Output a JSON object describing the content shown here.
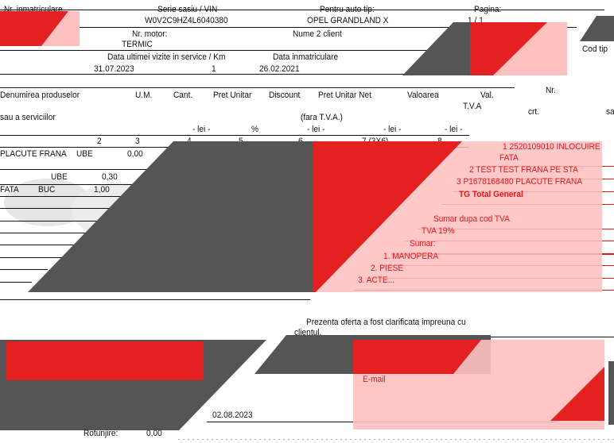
{
  "header": {
    "plate_label": "Nr. inmatriculare",
    "vin_label": "Serie sasiu / VIN",
    "vin_value": "W0V2C9HZ4L6040380",
    "model_label": "Pentru auto tip:",
    "model_value": "OPEL GRANDLAND X",
    "page_label": "Pagina:",
    "page_value": "1 / 1",
    "engine_label": "Nr. motor:",
    "engine_value": "TERMIC",
    "client2_label": "Nume 2 client",
    "code_label": "Cod tip",
    "last_visit_label": "Data ultimei vizite in service / Km",
    "last_visit_value": "31.07.2023",
    "km_value": "1",
    "reg_date_label": "Data inmatriculare",
    "reg_date_value": "26.02.2021"
  },
  "table": {
    "columns": {
      "name1": "Denumirea produselor",
      "name2": "sau a serviciilor",
      "um": "U.M.",
      "qty": "Cant.",
      "unit_price": "Pret Unitar",
      "discount": "Discount",
      "net_price": "Pret Unitar Net",
      "net_note": "(fara T.V.A.)",
      "value": "Valoarea",
      "vat1": "Val.",
      "vat2": "T.V.A",
      "nr1": "Nr.",
      "nr2": "crt.",
      "sa": "sa"
    },
    "units": [
      "- lei -",
      "%",
      "- lei -",
      "- lei -",
      "- lei -"
    ],
    "col_numbers": [
      "2",
      "3",
      "4",
      "5",
      "6",
      "7 (3X6)",
      "8"
    ],
    "rows": [
      {
        "name": "PLACUTE FRANA",
        "um": "UBE",
        "qty": "0,00"
      },
      {
        "name": "",
        "um": "UBE",
        "qty": "0,30"
      },
      {
        "name": "FATA",
        "um": "BUC",
        "qty": "1,00"
      }
    ]
  },
  "summary": {
    "items": [
      "1 2520109010 INLOCUIRE",
      "FATA",
      "2 TEST TEST FRANA PE STA",
      "3 P1678168480 PLACUTE FRANA"
    ],
    "total_general": "TG Total General",
    "by_vat": "Sumar dupa cod TVA",
    "vat": "TVA 19%",
    "sumar": "Sumar:",
    "sum_items": [
      "1. MANOPERA",
      "2. PIESE",
      "3. ACTE..."
    ]
  },
  "footer": {
    "statement1": "Prezenta oferta a fost clarificata impreuna cu",
    "statement2": "clientul.",
    "email_label": "E-mail",
    "date": "02.08.2023",
    "rounding_label": "Rotunjire:",
    "rounding_value": "0,00"
  },
  "colors": {
    "redact_gray": "#555555",
    "redact_red": "#e52020",
    "redact_pink": "#ffc0c0",
    "accent_text": "#e01818"
  }
}
